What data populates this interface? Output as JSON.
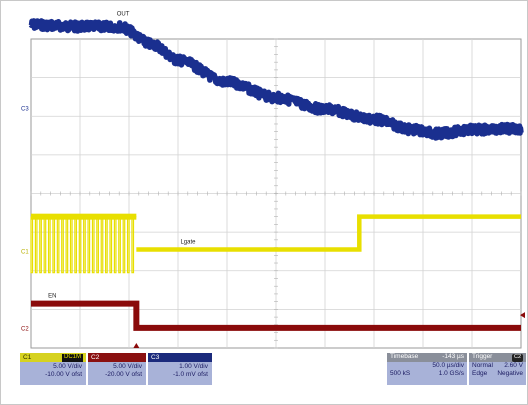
{
  "chart_data": {
    "type": "line",
    "title": "",
    "grid": true,
    "grid_divisions": {
      "x": 10,
      "y": 8
    },
    "x_scale_per_div_us": 50.0,
    "series": [
      {
        "name": "OUT",
        "channel": "C3",
        "color": "#1a2f8f",
        "ground_offset_div": 2.2,
        "volts_per_div": 1.0,
        "x_div": [
          0,
          1.0,
          1.8,
          2.5,
          3.0,
          4.0,
          5.0,
          6.0,
          7.0,
          7.8,
          8.3,
          9.0,
          10.0
        ],
        "y_div": [
          2.17,
          2.12,
          2.12,
          1.65,
          1.25,
          0.68,
          0.28,
          -0.02,
          -0.28,
          -0.55,
          -0.65,
          -0.55,
          -0.52
        ]
      },
      {
        "name": "Lgate",
        "channel": "C1",
        "color": "#e8df00",
        "ground_offset_div": -1.5,
        "volts_per_div": 5.0,
        "switching_region_div": [
          0,
          2.15
        ],
        "switching_high_div": 0.9,
        "switching_low_div": -0.55,
        "x_div": [
          2.15,
          6.7,
          6.7,
          10.0
        ],
        "y_div": [
          0.05,
          0.05,
          0.9,
          0.9
        ]
      },
      {
        "name": "EN",
        "channel": "C2",
        "color": "#8a0a0a",
        "ground_offset_div": -3.5,
        "volts_per_div": 5.0,
        "x_div": [
          0,
          2.15,
          2.15,
          10.0
        ],
        "y_div": [
          0.65,
          0.65,
          0.02,
          0.02
        ]
      }
    ],
    "annotations": [
      {
        "text": "OUT",
        "series": "OUT"
      },
      {
        "text": "Lgate",
        "series": "Lgate"
      },
      {
        "text": "EN",
        "series": "EN"
      }
    ],
    "ground_markers": [
      "C3",
      "C1",
      "C2"
    ]
  },
  "channels": [
    {
      "id": "C1",
      "coupling": "DC1M",
      "flag": "BWL",
      "scale": "5.00 V/div",
      "offset": "-10.00 V ofst"
    },
    {
      "id": "C2",
      "coupling": "",
      "flag": "",
      "scale": "5.00 V/div",
      "offset": "-20.00 V ofst"
    },
    {
      "id": "C3",
      "coupling": "",
      "flag": "",
      "scale": "1.00 V/div",
      "offset": "-1.0 mV ofst"
    }
  ],
  "timebase": {
    "label": "Timebase",
    "delay": "-143 µs",
    "per_div": "50.0 µs/div",
    "samples": "500 kS",
    "rate": "1.0 GS/s"
  },
  "trigger": {
    "label": "Trigger",
    "channel_badge": "C2",
    "mode": "Normal",
    "level": "2.60 V",
    "type": "Edge",
    "slope": "Negative"
  }
}
